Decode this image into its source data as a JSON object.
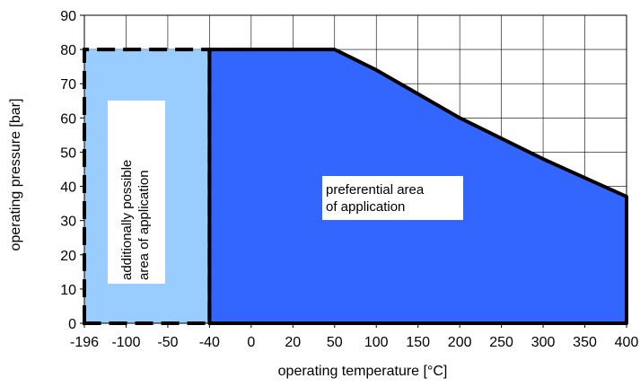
{
  "chart_data": {
    "type": "area",
    "xlabel": "operating  temperature [°C]",
    "ylabel": "operating  pressure [bar]",
    "x_ticks": [
      "-196",
      "-100",
      "-50",
      "-40",
      "0",
      "20",
      "50",
      "100",
      "150",
      "200",
      "250",
      "300",
      "350",
      "400"
    ],
    "ylim": [
      0,
      90
    ],
    "y_ticks": [
      0,
      10,
      20,
      30,
      40,
      50,
      60,
      70,
      80,
      90
    ],
    "grid": true,
    "regions": [
      {
        "label": "additionally possible area of application",
        "label_lines": [
          "additionally possible",
          "area of application"
        ],
        "color": "#99ccff",
        "border": "dashed",
        "points": [
          [
            "-196",
            0
          ],
          [
            "-196",
            80
          ],
          [
            "-40",
            80
          ],
          [
            "-40",
            0
          ]
        ]
      },
      {
        "label": "preferential area of application",
        "label_lines": [
          "preferential area",
          "of application"
        ],
        "color": "#3366ff",
        "border": "solid",
        "points": [
          [
            "-40",
            0
          ],
          [
            "-40",
            80
          ],
          [
            "50",
            80
          ],
          [
            "100",
            74
          ],
          [
            "150",
            67
          ],
          [
            "200",
            60
          ],
          [
            "250",
            54
          ],
          [
            "300",
            48
          ],
          [
            "350",
            42.5
          ],
          [
            "400",
            37
          ],
          [
            "400",
            0
          ]
        ]
      }
    ]
  }
}
